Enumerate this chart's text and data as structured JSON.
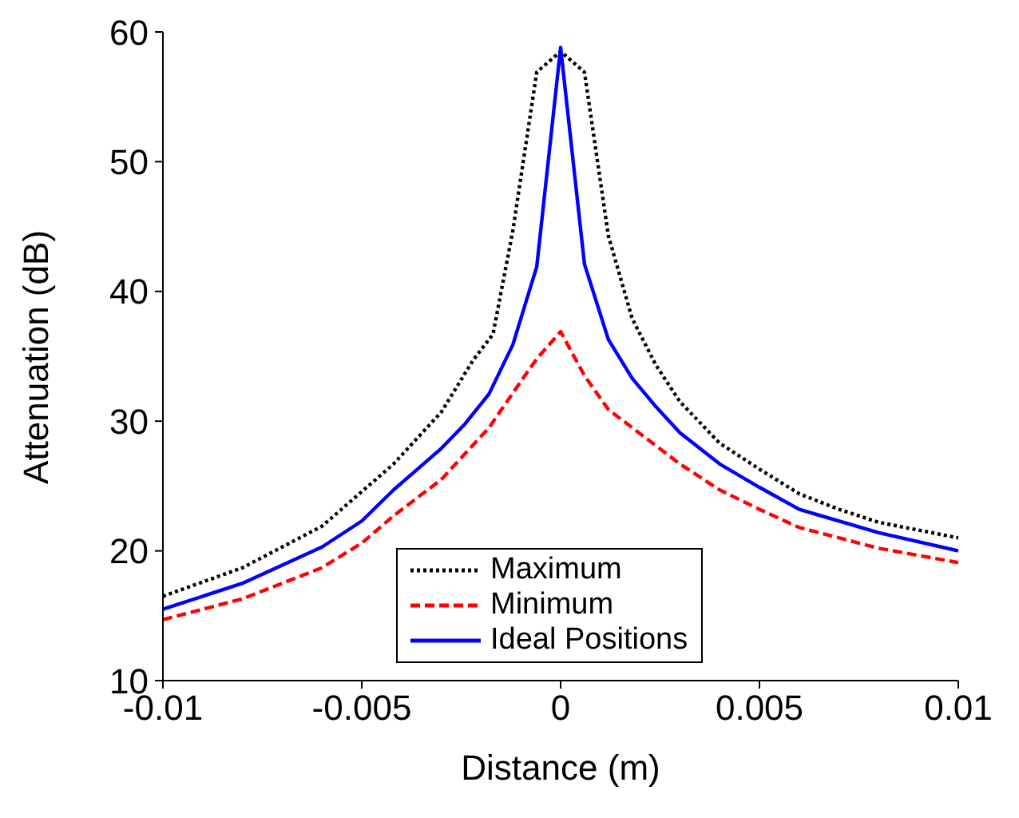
{
  "chart_data": {
    "type": "line",
    "xlabel": "Distance (m)",
    "ylabel": "Attenuation (dB)",
    "xlim": [
      -0.01,
      0.01
    ],
    "ylim": [
      10,
      60
    ],
    "xticks": [
      -0.01,
      -0.005,
      0,
      0.005,
      0.01
    ],
    "yticks": [
      10,
      20,
      30,
      40,
      50,
      60
    ],
    "grid": false,
    "legend": "bottom",
    "marker": "none",
    "series": [
      {
        "name": "Maximum",
        "color": "#000000",
        "line_style": "dotted",
        "x": [
          -0.01,
          -0.008,
          -0.006,
          -0.0042,
          -0.003,
          -0.0022,
          -0.0017,
          -0.0012,
          -0.0006,
          0,
          0.0006,
          0.0012,
          0.0018,
          0.0024,
          0.003,
          0.004,
          0.005,
          0.006,
          0.007,
          0.008,
          0.01
        ],
        "values": [
          16.5,
          18.7,
          21.9,
          26.7,
          30.7,
          34.7,
          36.7,
          44.7,
          56.9,
          58.5,
          56.9,
          44.3,
          37.9,
          34.3,
          31.5,
          28.3,
          26.3,
          24.4,
          23.2,
          22.2,
          21.0
        ]
      },
      {
        "name": "Minimum",
        "color": "#ff0000",
        "line_style": "dashed",
        "x": [
          -0.01,
          -0.008,
          -0.006,
          -0.005,
          -0.0042,
          -0.003,
          -0.0024,
          -0.0018,
          -0.0009,
          -0.0006,
          0,
          0.0006,
          0.0012,
          0.0018,
          0.0024,
          0.003,
          0.004,
          0.005,
          0.006,
          0.008,
          0.01
        ],
        "values": [
          14.7,
          16.3,
          18.7,
          20.6,
          22.7,
          25.5,
          27.5,
          29.5,
          33.5,
          34.8,
          36.9,
          33.5,
          30.9,
          29.5,
          28.1,
          26.7,
          24.7,
          23.2,
          21.8,
          20.2,
          19.1
        ]
      },
      {
        "name": "Ideal Positions",
        "color": "#0000ff",
        "line_style": "solid",
        "x": [
          -0.01,
          -0.008,
          -0.006,
          -0.005,
          -0.0042,
          -0.003,
          -0.0024,
          -0.0018,
          -0.0012,
          -0.0006,
          0,
          0.0006,
          0.0012,
          0.0018,
          0.0024,
          0.003,
          0.004,
          0.005,
          0.006,
          0.008,
          0.01
        ],
        "values": [
          15.5,
          17.5,
          20.3,
          22.3,
          24.7,
          27.9,
          29.8,
          32.1,
          35.9,
          41.9,
          58.8,
          42.1,
          36.3,
          33.3,
          31.1,
          29.1,
          26.7,
          24.9,
          23.2,
          21.4,
          20.0
        ]
      }
    ]
  }
}
